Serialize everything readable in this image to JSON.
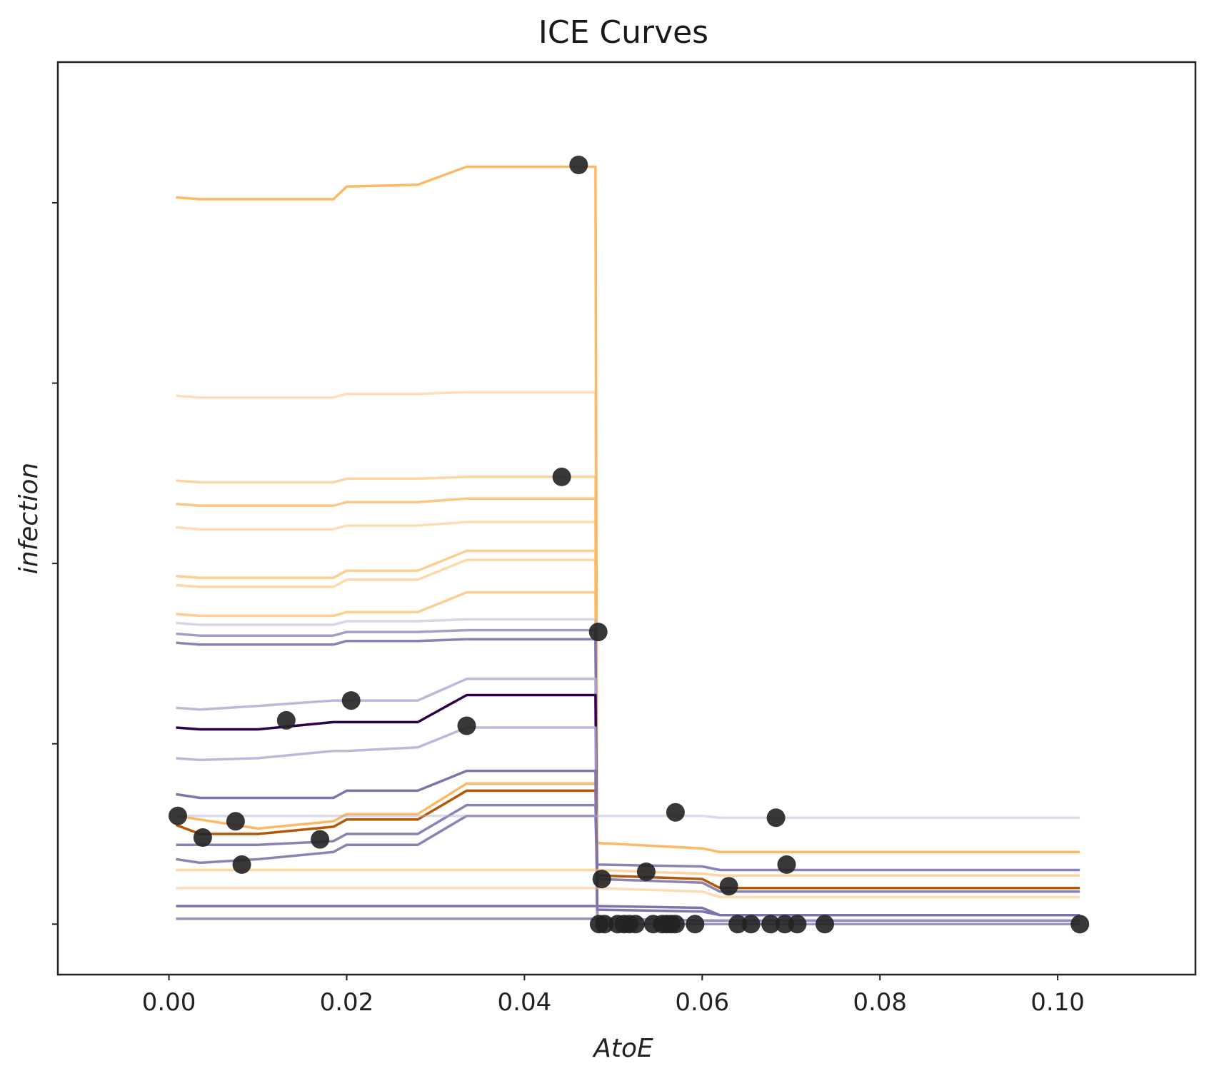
{
  "chart_data": {
    "type": "line",
    "title": "ICE Curves",
    "xlabel": "AtoE",
    "ylabel": "infection",
    "xlim": [
      -0.0125,
      0.1155
    ],
    "ylim": [
      -0.028,
      0.478
    ],
    "x_ticks": [
      0.0,
      0.02,
      0.04,
      0.06,
      0.08,
      0.1
    ],
    "x_tick_labels": [
      "0.00",
      "0.02",
      "0.04",
      "0.06",
      "0.08",
      "0.10"
    ],
    "y_ticks": [
      0.0,
      0.1,
      0.2,
      0.3,
      0.4
    ],
    "y_tick_labels": [
      "",
      "",
      "",
      "",
      ""
    ],
    "grid": false,
    "x_grid": [
      0.0008,
      0.0035,
      0.01,
      0.0185,
      0.02,
      0.028,
      0.0335,
      0.048,
      0.0482,
      0.06,
      0.062,
      0.1025
    ],
    "series": [
      {
        "name": "ice-1",
        "color": "#fdb863",
        "opacity": 1.0,
        "values": [
          0.403,
          0.402,
          0.402,
          0.402,
          0.409,
          0.41,
          0.42,
          0.42,
          0.0,
          0.0,
          0.0,
          0.0
        ]
      },
      {
        "name": "ice-2",
        "color": "#fdb863",
        "opacity": 0.45,
        "values": [
          0.293,
          0.292,
          0.292,
          0.292,
          0.294,
          0.294,
          0.295,
          0.295,
          0.0,
          0.0,
          0.0,
          0.0
        ]
      },
      {
        "name": "ice-3",
        "color": "#fdb863",
        "opacity": 0.6,
        "values": [
          0.246,
          0.245,
          0.245,
          0.245,
          0.247,
          0.247,
          0.248,
          0.248,
          0.0,
          0.0,
          0.0,
          0.0
        ]
      },
      {
        "name": "ice-4",
        "color": "#fdb863",
        "opacity": 0.8,
        "values": [
          0.233,
          0.232,
          0.232,
          0.232,
          0.234,
          0.234,
          0.236,
          0.236,
          0.0,
          0.0,
          0.0,
          0.0
        ]
      },
      {
        "name": "ice-5",
        "color": "#fdb863",
        "opacity": 0.5,
        "values": [
          0.22,
          0.219,
          0.219,
          0.219,
          0.221,
          0.221,
          0.223,
          0.223,
          0.0,
          0.0,
          0.0,
          0.0
        ]
      },
      {
        "name": "ice-6",
        "color": "#fdb863",
        "opacity": 0.7,
        "values": [
          0.193,
          0.192,
          0.192,
          0.192,
          0.196,
          0.196,
          0.207,
          0.207,
          0.0,
          0.0,
          0.0,
          0.0
        ]
      },
      {
        "name": "ice-7",
        "color": "#fdb863",
        "opacity": 0.55,
        "values": [
          0.188,
          0.187,
          0.187,
          0.187,
          0.191,
          0.191,
          0.202,
          0.202,
          0.0,
          0.0,
          0.0,
          0.0
        ]
      },
      {
        "name": "ice-8",
        "color": "#fdb863",
        "opacity": 0.7,
        "values": [
          0.172,
          0.171,
          0.171,
          0.171,
          0.173,
          0.173,
          0.184,
          0.184,
          0.0,
          0.0,
          0.0,
          0.0
        ]
      },
      {
        "name": "ice-9",
        "color": "#b2abd2",
        "opacity": 0.5,
        "values": [
          0.167,
          0.166,
          0.166,
          0.166,
          0.168,
          0.168,
          0.169,
          0.169,
          0.0,
          0.0,
          0.0,
          0.0
        ]
      },
      {
        "name": "ice-10",
        "color": "#8073ac",
        "opacity": 0.7,
        "values": [
          0.161,
          0.16,
          0.16,
          0.16,
          0.162,
          0.162,
          0.163,
          0.163,
          0.0,
          0.0,
          0.0,
          0.0
        ]
      },
      {
        "name": "ice-11",
        "color": "#8073ac",
        "opacity": 0.9,
        "values": [
          0.156,
          0.155,
          0.155,
          0.155,
          0.157,
          0.157,
          0.158,
          0.158,
          0.0,
          0.0,
          0.0,
          0.0
        ]
      },
      {
        "name": "ice-12",
        "color": "#b2abd2",
        "opacity": 0.85,
        "values": [
          0.12,
          0.119,
          0.121,
          0.124,
          0.124,
          0.124,
          0.136,
          0.136,
          0.0,
          0.0,
          0.0,
          0.0
        ]
      },
      {
        "name": "ice-13",
        "color": "#2d004b",
        "opacity": 1.0,
        "values": [
          0.109,
          0.108,
          0.108,
          0.112,
          0.112,
          0.112,
          0.127,
          0.127,
          0.0,
          0.0,
          0.0,
          0.0
        ]
      },
      {
        "name": "ice-14",
        "color": "#b2abd2",
        "opacity": 0.85,
        "values": [
          0.092,
          0.091,
          0.092,
          0.096,
          0.096,
          0.098,
          0.109,
          0.109,
          0.0,
          0.0,
          0.0,
          0.0
        ]
      },
      {
        "name": "ice-15",
        "color": "#fdb863",
        "opacity": 1.0,
        "values": [
          0.06,
          0.058,
          0.053,
          0.057,
          0.061,
          0.061,
          0.078,
          0.078,
          0.045,
          0.042,
          0.04,
          0.04
        ]
      },
      {
        "name": "ice-16",
        "color": "#b35806",
        "opacity": 1.0,
        "values": [
          0.055,
          0.05,
          0.05,
          0.054,
          0.058,
          0.058,
          0.074,
          0.074,
          0.027,
          0.025,
          0.02,
          0.02
        ]
      },
      {
        "name": "ice-17",
        "color": "#8073ac",
        "opacity": 0.9,
        "values": [
          0.044,
          0.044,
          0.044,
          0.046,
          0.05,
          0.05,
          0.066,
          0.066,
          0.033,
          0.032,
          0.03,
          0.03
        ]
      },
      {
        "name": "ice-18",
        "color": "#8073ac",
        "opacity": 0.9,
        "values": [
          0.036,
          0.034,
          0.036,
          0.04,
          0.044,
          0.044,
          0.06,
          0.06,
          0.025,
          0.023,
          0.018,
          0.018
        ]
      },
      {
        "name": "ice-19",
        "color": "#8073ac",
        "opacity": 1.0,
        "values": [
          0.072,
          0.07,
          0.07,
          0.07,
          0.074,
          0.074,
          0.085,
          0.085,
          0.008,
          0.007,
          0.005,
          0.005
        ]
      },
      {
        "name": "ice-20",
        "color": "#b2abd2",
        "opacity": 0.45,
        "values": [
          0.06,
          0.06,
          0.06,
          0.06,
          0.06,
          0.06,
          0.06,
          0.06,
          0.06,
          0.06,
          0.059,
          0.059
        ]
      },
      {
        "name": "ice-21",
        "color": "#fdb863",
        "opacity": 0.6,
        "values": [
          0.03,
          0.03,
          0.03,
          0.03,
          0.03,
          0.03,
          0.03,
          0.03,
          0.03,
          0.028,
          0.027,
          0.027
        ]
      },
      {
        "name": "ice-22",
        "color": "#fdb863",
        "opacity": 0.5,
        "values": [
          0.02,
          0.02,
          0.02,
          0.02,
          0.02,
          0.02,
          0.02,
          0.02,
          0.02,
          0.018,
          0.015,
          0.015
        ]
      },
      {
        "name": "ice-23",
        "color": "#8073ac",
        "opacity": 1.0,
        "values": [
          0.01,
          0.01,
          0.01,
          0.01,
          0.01,
          0.01,
          0.01,
          0.01,
          0.01,
          0.009,
          0.005,
          0.005
        ]
      },
      {
        "name": "ice-24",
        "color": "#8073ac",
        "opacity": 0.8,
        "values": [
          0.003,
          0.003,
          0.003,
          0.003,
          0.003,
          0.003,
          0.003,
          0.003,
          0.003,
          0.002,
          0.002,
          0.002
        ]
      }
    ],
    "points": [
      {
        "x": 0.0461,
        "y": 0.421
      },
      {
        "x": 0.0442,
        "y": 0.248
      },
      {
        "x": 0.0483,
        "y": 0.162
      },
      {
        "x": 0.0205,
        "y": 0.124
      },
      {
        "x": 0.0132,
        "y": 0.113
      },
      {
        "x": 0.0335,
        "y": 0.11
      },
      {
        "x": 0.001,
        "y": 0.06
      },
      {
        "x": 0.0075,
        "y": 0.057
      },
      {
        "x": 0.0038,
        "y": 0.048
      },
      {
        "x": 0.017,
        "y": 0.047
      },
      {
        "x": 0.0082,
        "y": 0.033
      },
      {
        "x": 0.057,
        "y": 0.062
      },
      {
        "x": 0.0683,
        "y": 0.059
      },
      {
        "x": 0.0695,
        "y": 0.033
      },
      {
        "x": 0.0537,
        "y": 0.029
      },
      {
        "x": 0.0487,
        "y": 0.025
      },
      {
        "x": 0.063,
        "y": 0.021
      },
      {
        "x": 0.0484,
        "y": 0.0
      },
      {
        "x": 0.049,
        "y": 0.0
      },
      {
        "x": 0.0505,
        "y": 0.0
      },
      {
        "x": 0.0512,
        "y": 0.0
      },
      {
        "x": 0.0518,
        "y": 0.0
      },
      {
        "x": 0.0525,
        "y": 0.0
      },
      {
        "x": 0.0545,
        "y": 0.0
      },
      {
        "x": 0.0555,
        "y": 0.0
      },
      {
        "x": 0.056,
        "y": 0.0
      },
      {
        "x": 0.0565,
        "y": 0.0
      },
      {
        "x": 0.057,
        "y": 0.0
      },
      {
        "x": 0.0592,
        "y": 0.0
      },
      {
        "x": 0.064,
        "y": 0.0
      },
      {
        "x": 0.0655,
        "y": 0.0
      },
      {
        "x": 0.0677,
        "y": 0.0
      },
      {
        "x": 0.0693,
        "y": 0.0
      },
      {
        "x": 0.0707,
        "y": 0.0
      },
      {
        "x": 0.0738,
        "y": 0.0
      },
      {
        "x": 0.1025,
        "y": 0.0
      }
    ],
    "point_color": "#222222",
    "point_opacity": 0.9
  }
}
